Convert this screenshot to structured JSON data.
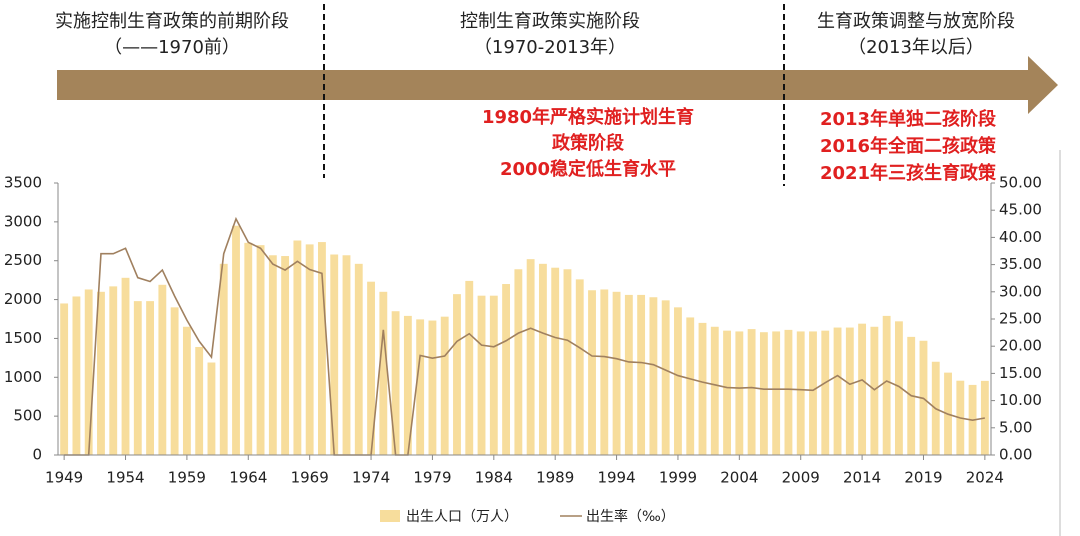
{
  "chart_data": {
    "type": "bar-line",
    "annotations": {
      "phases": [
        {
          "title": "实施控制生育政策的前期阶段",
          "period": "（——1970前）"
        },
        {
          "title": "控制生育政策实施阶段",
          "period": "（1970-2013年）"
        },
        {
          "title": "生育政策调整与放宽阶段",
          "period": "（2013年以后）"
        }
      ],
      "notes": [
        [
          "1980年严格实施计划生育",
          "政策阶段",
          "2000稳定低生育水平"
        ],
        [
          "2013年单独二孩阶段",
          "2016年全面二孩政策",
          "2021年三孩生育政策"
        ]
      ]
    },
    "x": [
      1949,
      1950,
      1951,
      1952,
      1953,
      1954,
      1955,
      1956,
      1957,
      1958,
      1959,
      1960,
      1961,
      1962,
      1963,
      1964,
      1965,
      1966,
      1967,
      1968,
      1969,
      1970,
      1971,
      1972,
      1973,
      1974,
      1975,
      1976,
      1977,
      1978,
      1979,
      1980,
      1981,
      1982,
      1983,
      1984,
      1985,
      1986,
      1987,
      1988,
      1989,
      1990,
      1991,
      1992,
      1993,
      1994,
      1995,
      1996,
      1997,
      1998,
      1999,
      2000,
      2001,
      2002,
      2003,
      2004,
      2005,
      2006,
      2007,
      2008,
      2009,
      2010,
      2011,
      2012,
      2013,
      2014,
      2015,
      2016,
      2017,
      2018,
      2019,
      2020,
      2021,
      2022,
      2023,
      2024
    ],
    "series": [
      {
        "name": "出生人口（万人）",
        "type": "bar",
        "color": "#f7dd9c",
        "values": [
          1950,
          2040,
          2130,
          2100,
          2170,
          2280,
          1980,
          1980,
          2190,
          1900,
          1650,
          1390,
          1190,
          2460,
          2950,
          2730,
          2700,
          2570,
          2560,
          2760,
          2710,
          2740,
          2580,
          2570,
          2460,
          2230,
          2100,
          1850,
          1790,
          1745,
          1730,
          1780,
          2070,
          2240,
          2050,
          2050,
          2200,
          2390,
          2520,
          2460,
          2410,
          2390,
          2260,
          2120,
          2130,
          2100,
          2060,
          2060,
          2030,
          1990,
          1900,
          1770,
          1700,
          1650,
          1600,
          1590,
          1620,
          1580,
          1590,
          1610,
          1590,
          1590,
          1600,
          1640,
          1640,
          1690,
          1650,
          1790,
          1720,
          1520,
          1470,
          1200,
          1060,
          956,
          902,
          954
        ]
      },
      {
        "name": "出生率（‰）",
        "type": "line",
        "axis": "y2",
        "color": "#a0805f",
        "values": [
          0,
          0,
          0,
          37.0,
          37.0,
          38.0,
          32.6,
          31.9,
          34.0,
          29.2,
          24.8,
          20.9,
          18.0,
          37.0,
          43.4,
          39.1,
          38.0,
          35.1,
          34.0,
          35.6,
          34.1,
          33.4,
          0,
          0,
          0,
          0,
          23.0,
          0,
          0,
          18.3,
          17.8,
          18.2,
          20.9,
          22.3,
          20.2,
          19.9,
          21.0,
          22.4,
          23.3,
          22.4,
          21.6,
          21.1,
          19.7,
          18.2,
          18.1,
          17.7,
          17.1,
          17.0,
          16.6,
          15.6,
          14.6,
          14.0,
          13.4,
          12.9,
          12.4,
          12.3,
          12.4,
          12.1,
          12.1,
          12.1,
          12.0,
          11.9,
          13.3,
          14.6,
          13.0,
          13.8,
          12.0,
          13.6,
          12.6,
          10.9,
          10.4,
          8.5,
          7.5,
          6.8,
          6.4,
          6.8
        ]
      }
    ],
    "xlim": [
      1948.5,
      2024.5
    ],
    "xticks": [
      1949,
      1954,
      1959,
      1964,
      1969,
      1974,
      1979,
      1984,
      1989,
      1994,
      1999,
      2004,
      2009,
      2014,
      2019,
      2024
    ],
    "ylim": [
      0,
      3500
    ],
    "yticks": [
      0,
      500,
      1000,
      1500,
      2000,
      2500,
      3000,
      3500
    ],
    "y2lim": [
      0,
      50
    ],
    "y2ticks": [
      {
        "value": 0,
        "label": "0.00"
      },
      {
        "value": 5,
        "label": "5.00"
      },
      {
        "value": 10,
        "label": "10.00"
      },
      {
        "value": 15,
        "label": "15.00"
      },
      {
        "value": 20,
        "label": "20.00"
      },
      {
        "value": 25,
        "label": "25.00"
      },
      {
        "value": 30,
        "label": "30.00"
      },
      {
        "value": 35,
        "label": "35.00"
      },
      {
        "value": 40,
        "label": "40.00"
      },
      {
        "value": 45,
        "label": "45.00"
      },
      {
        "value": 50,
        "label": "50.00"
      }
    ]
  }
}
